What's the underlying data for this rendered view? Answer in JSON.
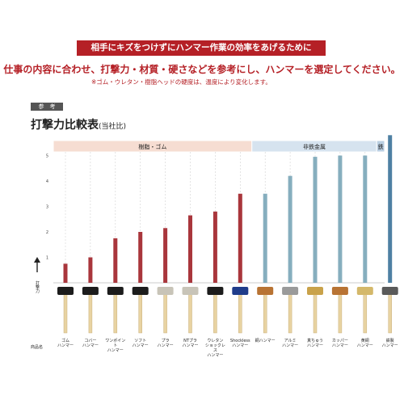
{
  "banner": "相手にキズをつけずにハンマー作業の効率をあげるために",
  "lead": "仕事の内容に合わせ、打撃力・材質・硬さなどを参考にし、ハンマーを選定してください。",
  "note": "※ゴム・ウレタン・樹脂ヘッドの硬度は、温度により変化します。",
  "ref_tag": "参　考",
  "title": "打撃力比較表",
  "title_sub": "(当社比)",
  "row_label": "商品名",
  "colors": {
    "resin": "#a9363c",
    "nonferrous": "#86aebe",
    "steel": "#4e80a3",
    "red": "#b52026"
  },
  "chart_data": {
    "type": "bar",
    "title": "打撃力比較表",
    "subtitle": "(当社比)",
    "ylabel": "打撃力",
    "ylim": [
      0,
      6
    ],
    "yticks": [
      "1",
      "2",
      "3",
      "4",
      "5"
    ],
    "grid": false,
    "groups": [
      {
        "name": "樹脂・ゴム",
        "span": [
          0,
          7
        ],
        "color": "#f6ddd2"
      },
      {
        "name": "非鉄金属",
        "span": [
          8,
          12
        ],
        "color": "#d6e3ef"
      },
      {
        "name": "鉄",
        "span": [
          13,
          13
        ],
        "color": "#b9cee1"
      }
    ],
    "categories": [
      "ゴム\nハンマー",
      "コバー\nハンマー",
      "ワンポイント\nハンマー",
      "ソフト\nハンマー",
      "プラ\nハンマー",
      "NTプラ\nハンマー",
      "ウレタン\nショックレス\nハンマー",
      "Shockless\nハンマー",
      "銅ハンマー",
      "アルミ\nハンマー",
      "真ちゅう\nハンマー",
      "カッパー\nハンマー",
      "黄銅\nハンマー",
      "鉄製\nハンマー"
    ],
    "values": [
      0.75,
      1.0,
      1.75,
      2.0,
      2.15,
      2.65,
      2.8,
      3.5,
      3.5,
      4.2,
      4.95,
      5.0,
      5.0,
      5.8
    ],
    "bar_colors": [
      "#a9363c",
      "#a9363c",
      "#a9363c",
      "#a9363c",
      "#a9363c",
      "#a9363c",
      "#a9363c",
      "#a9363c",
      "#86aebe",
      "#86aebe",
      "#86aebe",
      "#86aebe",
      "#86aebe",
      "#4e80a3"
    ],
    "head_colors": [
      "#1c1c1c",
      "#1c1c1c",
      "#1c1c1c",
      "#1c1c1c",
      "#c8c4b8",
      "#c8c4b8",
      "#1c1c1c",
      "#1f3c8a",
      "#b87333",
      "#9a9a9a",
      "#c9a24a",
      "#b87333",
      "#d4b86a",
      "#5a5a5a"
    ]
  }
}
